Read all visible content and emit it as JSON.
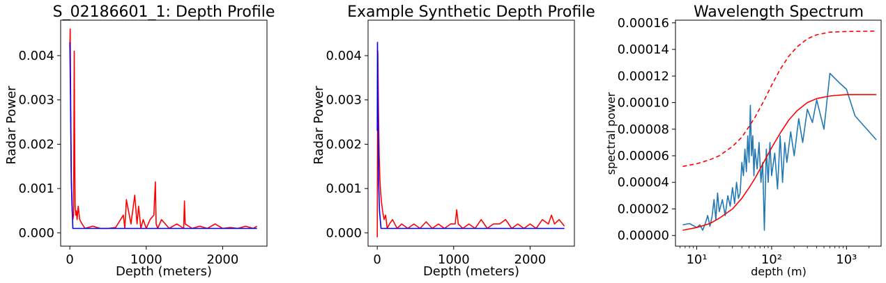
{
  "chart_data": [
    {
      "type": "line",
      "title": "S_02186601_1: Depth Profile",
      "xlabel": "Depth (meters)",
      "ylabel": "Radar Power",
      "xlim": [
        -120,
        2580
      ],
      "ylim": [
        -0.0003,
        0.0048
      ],
      "xticks": [
        0,
        1000,
        2000
      ],
      "xtick_labels": [
        "0",
        "1000",
        "2000"
      ],
      "yticks": [
        0,
        0.001,
        0.002,
        0.003,
        0.004
      ],
      "ytick_labels": [
        "0.000",
        "0.001",
        "0.002",
        "0.003",
        "0.004"
      ],
      "grid": false,
      "series": [
        {
          "color": "#ff0000",
          "x": [
            0,
            5,
            12,
            20,
            30,
            40,
            50,
            58,
            64,
            70,
            78,
            85,
            95,
            110,
            130,
            160,
            200,
            300,
            400,
            500,
            600,
            700,
            720,
            740,
            800,
            850,
            880,
            900,
            930,
            960,
            1000,
            1050,
            1100,
            1120,
            1130,
            1150,
            1200,
            1300,
            1400,
            1490,
            1500,
            1510,
            1600,
            1700,
            1800,
            1900,
            2000,
            2100,
            2200,
            2300,
            2400,
            2450
          ],
          "y": [
            0.0042,
            0.0046,
            0.0028,
            0.0012,
            0.0005,
            0.0003,
            0.0004,
            0.0041,
            0.0018,
            0.0006,
            0.0004,
            0.0005,
            0.0003,
            0.0006,
            0.0003,
            0.0002,
            0.0001,
            0.00015,
            0.0001,
            0.0001,
            0.00012,
            0.0004,
            0.0001,
            0.00075,
            0.0002,
            0.00085,
            0.0002,
            0.0006,
            0.0001,
            0.0003,
            0.0001,
            0.0003,
            0.0004,
            0.00115,
            0.0002,
            0.0001,
            0.0003,
            0.0001,
            0.0002,
            0.0001,
            0.00072,
            0.0002,
            0.0001,
            0.00015,
            0.0001,
            0.0002,
            0.0001,
            0.00012,
            0.0001,
            0.00015,
            0.0001,
            0.00015
          ]
        },
        {
          "color": "#0000ff",
          "x": [
            0,
            5,
            20,
            40,
            2450
          ],
          "y": [
            0.0043,
            0.0036,
            0.0012,
            0.0001,
            0.0001
          ]
        }
      ]
    },
    {
      "type": "line",
      "title": "Example Synthetic Depth Profile",
      "xlabel": "Depth (meters)",
      "ylabel": "Radar Power",
      "xlim": [
        -120,
        2580
      ],
      "ylim": [
        -0.0003,
        0.0048
      ],
      "xticks": [
        0,
        1000,
        2000
      ],
      "xtick_labels": [
        "0",
        "1000",
        "2000"
      ],
      "yticks": [
        0,
        0.001,
        0.002,
        0.003,
        0.004
      ],
      "ytick_labels": [
        "0.000",
        "0.001",
        "0.002",
        "0.003",
        "0.004"
      ],
      "grid": false,
      "series": [
        {
          "color": "#ff0000",
          "x": [
            0,
            8,
            16,
            25,
            35,
            45,
            55,
            70,
            90,
            110,
            130,
            160,
            200,
            260,
            320,
            400,
            480,
            560,
            640,
            720,
            800,
            880,
            960,
            1020,
            1040,
            1060,
            1120,
            1200,
            1280,
            1360,
            1440,
            1520,
            1600,
            1680,
            1760,
            1840,
            1920,
            2000,
            2080,
            2160,
            2240,
            2280,
            2320,
            2380,
            2450
          ],
          "y": [
            -0.0001,
            0.0041,
            0.0028,
            0.0018,
            0.0012,
            0.0009,
            0.0007,
            0.0005,
            0.0003,
            0.0004,
            0.0001,
            0.0002,
            0.0003,
            0.0001,
            0.0002,
            0.0001,
            0.0002,
            0.0001,
            0.00025,
            0.0001,
            0.0002,
            0.0001,
            0.0002,
            0.0002,
            0.00052,
            0.0002,
            0.0001,
            0.0002,
            0.0001,
            0.0003,
            0.0001,
            0.0002,
            0.0002,
            0.0003,
            0.0001,
            0.0002,
            0.0001,
            0.0002,
            0.0001,
            0.0003,
            0.0002,
            0.0004,
            0.0002,
            0.0003,
            0.00015
          ]
        },
        {
          "color": "#0000ff",
          "x": [
            0,
            3,
            6,
            10,
            18,
            30,
            50,
            2450
          ],
          "y": [
            0.0023,
            0.0043,
            0.0036,
            0.0025,
            0.0012,
            0.0005,
            0.0001,
            0.0001
          ]
        }
      ]
    },
    {
      "type": "line",
      "title": "Wavelength Spectrum",
      "xlabel": "depth (m)",
      "ylabel": "spectral power",
      "xscale": "log",
      "xlim": [
        5.2,
        2900
      ],
      "ylim": [
        -8e-06,
        0.000162
      ],
      "xticks": [
        10,
        100,
        1000
      ],
      "xtick_labels": [
        "10¹",
        "10²",
        "10³"
      ],
      "yticks": [
        0,
        2e-05,
        4e-05,
        6e-05,
        8e-05,
        0.0001,
        0.00012,
        0.00014,
        0.00016
      ],
      "ytick_labels": [
        "0.00000",
        "0.00002",
        "0.00004",
        "0.00006",
        "0.00008",
        "0.00010",
        "0.00012",
        "0.00014",
        "0.00016"
      ],
      "grid": false,
      "series": [
        {
          "color": "#1f77b4",
          "x": [
            6.5,
            8,
            10,
            11,
            12,
            13,
            14,
            15,
            16,
            17,
            18,
            19,
            20,
            22,
            24,
            26,
            28,
            30,
            32,
            34,
            36,
            38,
            40,
            42,
            44,
            46,
            48,
            50,
            52,
            54,
            56,
            58,
            60,
            64,
            68,
            72,
            76,
            80,
            85,
            90,
            95,
            100,
            110,
            120,
            130,
            140,
            150,
            160,
            180,
            200,
            230,
            260,
            300,
            350,
            400,
            500,
            600,
            800,
            1000,
            1300,
            2500
          ],
          "y": [
            8e-06,
            9e-06,
            6e-06,
            8e-06,
            4e-06,
            9e-06,
            1.5e-05,
            7e-06,
            1.4e-05,
            2.7e-05,
            1.2e-05,
            3.2e-05,
            1.8e-05,
            2.7e-05,
            1.5e-05,
            3e-05,
            2.2e-05,
            3.6e-05,
            2.4e-05,
            4e-05,
            2.8e-05,
            3.2e-05,
            5.5e-05,
            4.5e-05,
            6.5e-05,
            4.8e-05,
            7.5e-05,
            5.5e-05,
            9.8e-05,
            6e-05,
            7.5e-05,
            4.5e-05,
            6.5e-05,
            5e-05,
            7e-05,
            4e-05,
            5.5e-05,
            4e-06,
            6.5e-05,
            4e-05,
            7e-05,
            4.5e-05,
            6.2e-05,
            3.5e-05,
            7.5e-05,
            4e-05,
            7e-05,
            5.5e-05,
            7.8e-05,
            6e-05,
            8.8e-05,
            7e-05,
            9.5e-05,
            8.5e-05,
            0.000102,
            8e-05,
            0.000122,
            0.000115,
            0.00011,
            9e-05,
            7.2e-05
          ]
        },
        {
          "color": "#ff0000",
          "dash": false,
          "x": [
            6.5,
            10,
            15,
            20,
            30,
            40,
            50,
            60,
            70,
            80,
            100,
            130,
            170,
            220,
            300,
            400,
            600,
            1000,
            2500
          ],
          "y": [
            4e-06,
            6e-06,
            9e-06,
            1.3e-05,
            2e-05,
            2.8e-05,
            3.6e-05,
            4.3e-05,
            5e-05,
            5.6e-05,
            6.6e-05,
            7.7e-05,
            8.7e-05,
            9.4e-05,
            0.0001,
            0.000103,
            0.000105,
            0.000106,
            0.000106
          ]
        },
        {
          "color": "#ff0000",
          "dash": true,
          "x": [
            6.5,
            10,
            15,
            20,
            30,
            40,
            50,
            60,
            70,
            80,
            100,
            130,
            170,
            220,
            300,
            400,
            600,
            1000,
            2500
          ],
          "y": [
            5.2e-05,
            5.4e-05,
            5.7e-05,
            6e-05,
            6.7e-05,
            7.4e-05,
            8.2e-05,
            8.9e-05,
            9.6e-05,
            0.000102,
            0.000113,
            0.000125,
            0.000135,
            0.000142,
            0.000148,
            0.000151,
            0.000153,
            0.0001535,
            0.0001538
          ]
        }
      ]
    }
  ]
}
